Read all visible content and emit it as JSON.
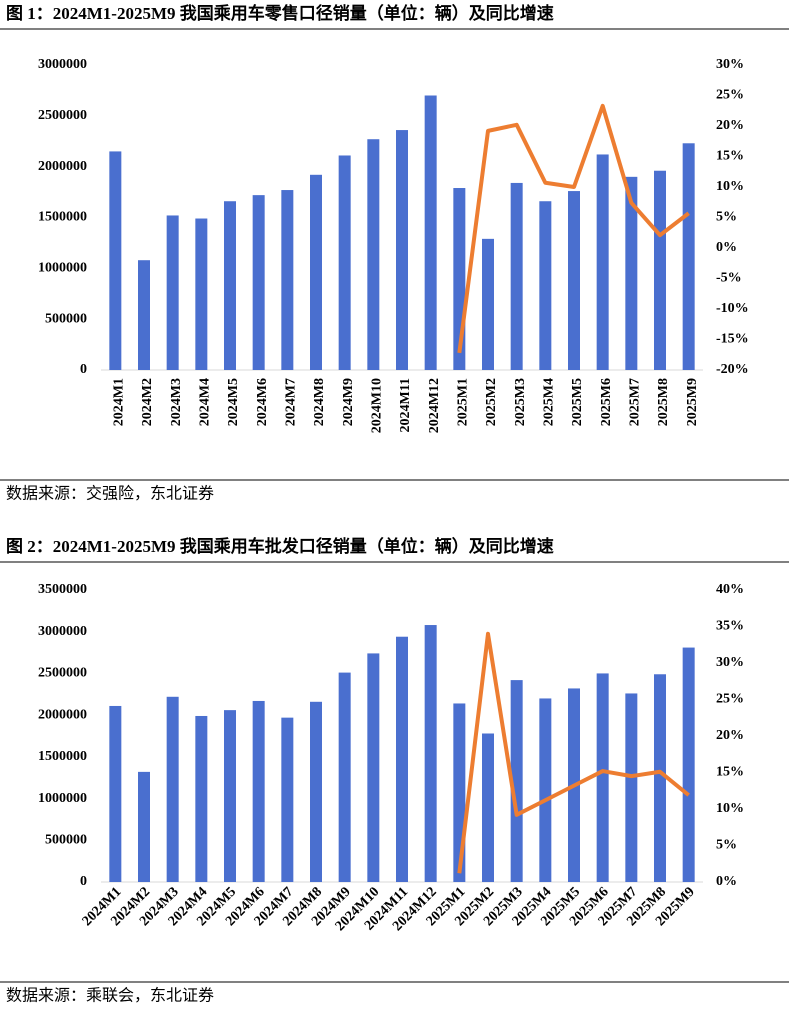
{
  "chart_data": [
    {
      "type": "bar",
      "title": "图 1：2024M1-2025M9 我国乘用车零售口径销量（单位：辆）及同比增速",
      "source": "数据来源：交强险，东北证券",
      "categories": [
        "2024M1",
        "2024M2",
        "2024M3",
        "2024M4",
        "2024M5",
        "2024M6",
        "2024M7",
        "2024M8",
        "2024M9",
        "2024M10",
        "2024M11",
        "2024M12",
        "2025M1",
        "2025M2",
        "2025M3",
        "2025M4",
        "2025M5",
        "2025M6",
        "2025M7",
        "2025M8",
        "2025M9"
      ],
      "series": [
        {
          "type": "bar",
          "color": "#4a6fcf",
          "values": [
            2150000,
            1080000,
            1520000,
            1490000,
            1660000,
            1720000,
            1770000,
            1920000,
            2110000,
            2270000,
            2360000,
            2700000,
            1790000,
            1290000,
            1840000,
            1660000,
            1760000,
            2120000,
            1900000,
            1960000,
            2230000
          ]
        },
        {
          "type": "line",
          "axis": "y2",
          "color": "#ed7d31",
          "values": [
            null,
            null,
            null,
            null,
            null,
            null,
            null,
            null,
            null,
            null,
            null,
            null,
            -17.2,
            19.2,
            20.2,
            10.7,
            10,
            23.3,
            7.4,
            2.1,
            5.7
          ]
        }
      ],
      "ylim": [
        0,
        3000000
      ],
      "yticks": [
        0,
        500000,
        1000000,
        1500000,
        2000000,
        2500000,
        3000000
      ],
      "y2lim": [
        -20,
        30
      ],
      "y2ticks": [
        {
          "value": -20,
          "label": "-20%"
        },
        {
          "value": -15,
          "label": "-15%"
        },
        {
          "value": -10,
          "label": "-10%"
        },
        {
          "value": -5,
          "label": "-5%"
        },
        {
          "value": 0,
          "label": "0%"
        },
        {
          "value": 5,
          "label": "5%"
        },
        {
          "value": 10,
          "label": "10%"
        },
        {
          "value": 15,
          "label": "15%"
        },
        {
          "value": 20,
          "label": "20%"
        },
        {
          "value": 25,
          "label": "25%"
        },
        {
          "value": 30,
          "label": "30%"
        }
      ],
      "grid": false
    },
    {
      "type": "bar",
      "title": "图 2：2024M1-2025M9 我国乘用车批发口径销量（单位：辆）及同比增速",
      "source": "数据来源：乘联会，东北证券",
      "categories": [
        "2024M1",
        "2024M2",
        "2024M3",
        "2024M4",
        "2024M5",
        "2024M6",
        "2024M7",
        "2024M8",
        "2024M9",
        "2024M10",
        "2024M11",
        "2024M12",
        "2025M1",
        "2025M2",
        "2025M3",
        "2025M4",
        "2025M5",
        "2025M6",
        "2025M7",
        "2025M8",
        "2025M9"
      ],
      "series": [
        {
          "type": "bar",
          "color": "#4a6fcf",
          "values": [
            2110000,
            1320000,
            2220000,
            1990000,
            2060000,
            2170000,
            1970000,
            2160000,
            2510000,
            2740000,
            2940000,
            3080000,
            2140000,
            1780000,
            2420000,
            2200000,
            2320000,
            2500000,
            2260000,
            2490000,
            2810000
          ]
        },
        {
          "type": "line",
          "axis": "y2",
          "color": "#ed7d31",
          "values": [
            null,
            null,
            null,
            null,
            null,
            null,
            null,
            null,
            null,
            null,
            null,
            null,
            1.2,
            34,
            9.2,
            11.2,
            13.2,
            15.2,
            14.5,
            15.1,
            11.9
          ]
        }
      ],
      "ylim": [
        0,
        3500000
      ],
      "yticks": [
        0,
        500000,
        1000000,
        1500000,
        2000000,
        2500000,
        3000000,
        3500000
      ],
      "y2lim": [
        0,
        40
      ],
      "y2ticks": [
        {
          "value": 0,
          "label": "0%"
        },
        {
          "value": 5,
          "label": "5%"
        },
        {
          "value": 10,
          "label": "10%"
        },
        {
          "value": 15,
          "label": "15%"
        },
        {
          "value": 20,
          "label": "20%"
        },
        {
          "value": 25,
          "label": "25%"
        },
        {
          "value": 30,
          "label": "30%"
        },
        {
          "value": 35,
          "label": "35%"
        },
        {
          "value": 40,
          "label": "40%"
        }
      ],
      "grid": false
    }
  ]
}
